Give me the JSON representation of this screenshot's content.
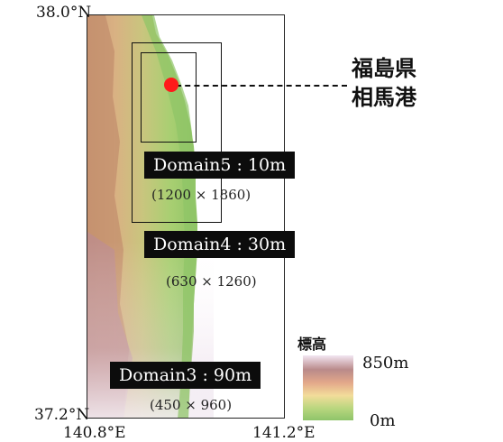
{
  "axes": {
    "lat_top": "38.0°N",
    "lat_bottom": "37.2°N",
    "lon_left": "140.8°E",
    "lon_right": "141.2°E"
  },
  "site": {
    "name_line1": "福島県",
    "name_line2": "相馬港",
    "marker_color": "#ff1a1a"
  },
  "domains": [
    {
      "label": "Domain5 : 10m",
      "grid": "(1200 × 1860)"
    },
    {
      "label": "Domain4 : 30m",
      "grid": "(630 × 1260)"
    },
    {
      "label": "Domain3 : 90m",
      "grid": "(450 × 960)"
    }
  ],
  "legend": {
    "title": "標高",
    "max_label": "850m",
    "min_label": "0m"
  }
}
